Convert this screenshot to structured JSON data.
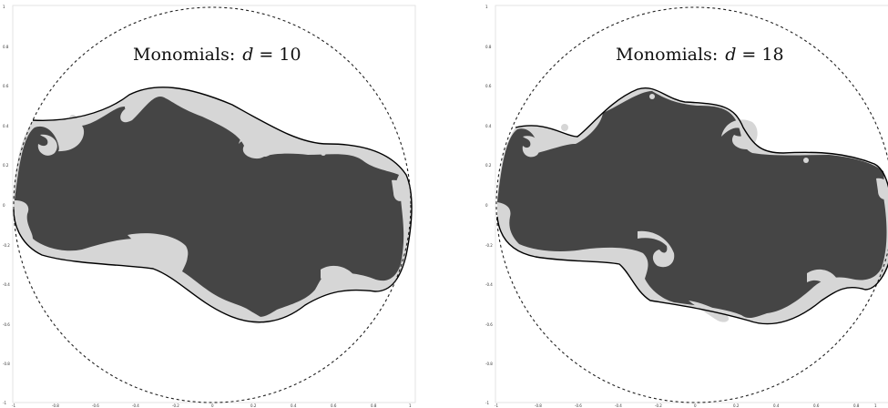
{
  "panels": [
    {
      "title_prefix": "Monomials:",
      "title_var": "d",
      "title_eq": " = 10",
      "yticks": [
        "1",
        "0.8",
        "0.6",
        "0.4",
        "0.2",
        "0",
        "-0.2",
        "-0.4",
        "-0.6",
        "-0.8",
        "-1"
      ],
      "xticks": [
        "-1",
        "-0.8",
        "-0.6",
        "-0.4",
        "-0.2",
        "0",
        "0.2",
        "0.4",
        "0.6",
        "0.8",
        "1"
      ]
    },
    {
      "title_prefix": "Monomials:",
      "title_var": "d",
      "title_eq": " = 18",
      "yticks": [
        "1",
        "0.8",
        "0.6",
        "0.4",
        "0.2",
        "0",
        "-0.2",
        "-0.4",
        "-0.6",
        "-0.8",
        "-1"
      ],
      "xticks": [
        "-1",
        "-0.8",
        "-0.6",
        "-0.4",
        "-0.2",
        "0",
        "0.2",
        "0.4",
        "0.6",
        "0.8",
        "1"
      ]
    }
  ],
  "colors": {
    "region_dark": "#454545",
    "region_light": "#d6d6d6",
    "curve": "#000000",
    "circle": "#222222",
    "frame": "#dddddd"
  }
}
